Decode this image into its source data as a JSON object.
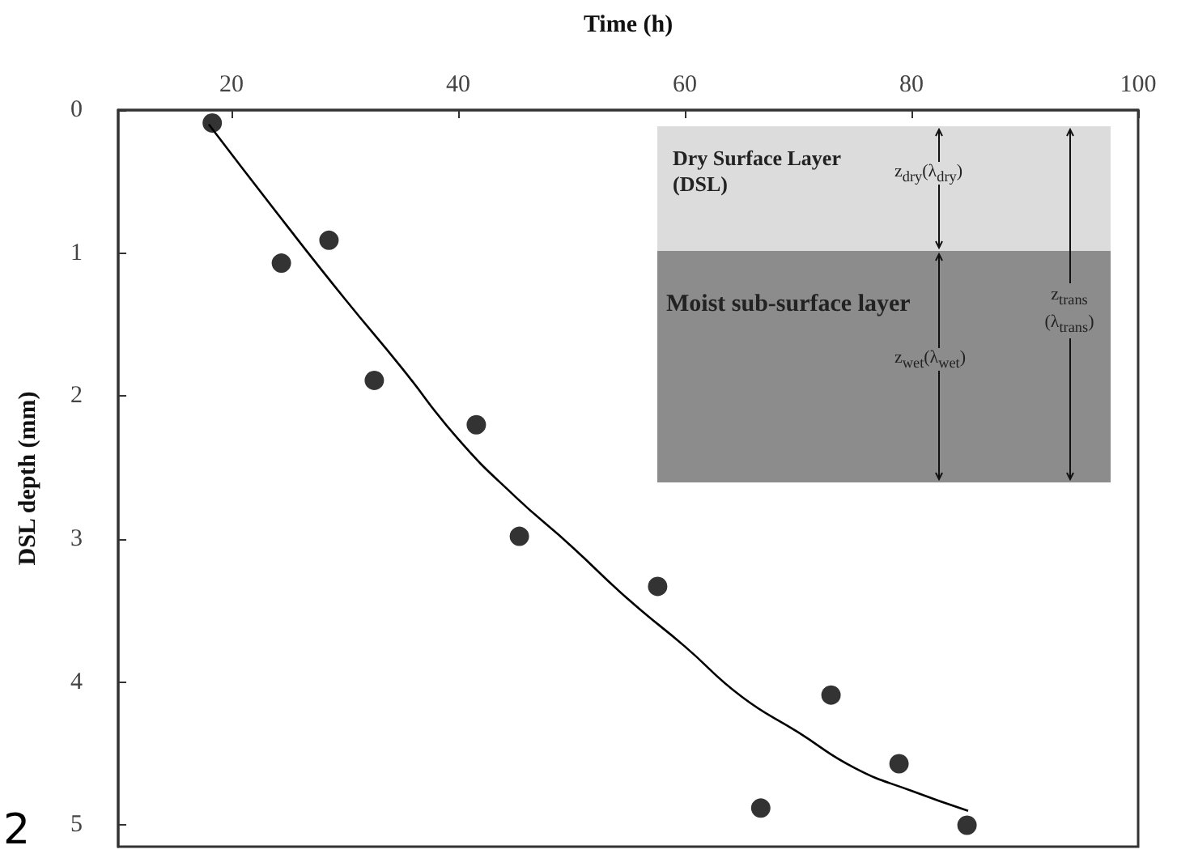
{
  "chart_data": {
    "type": "scatter",
    "xlabel": "Time (h)",
    "ylabel": "DSL depth (mm)",
    "xlim": [
      10,
      100
    ],
    "xticks": [
      20,
      40,
      60,
      80,
      100
    ],
    "ylim": [
      5.15,
      0
    ],
    "yticks": [
      0,
      1,
      2,
      3,
      4,
      5
    ],
    "grid": false,
    "marker": "circle",
    "series": [
      {
        "color": "#000000",
        "x": [
          18.3,
          24.4,
          28.6,
          32.6,
          41.6,
          45.4,
          57.6,
          66.7,
          72.9,
          78.9,
          84.9
        ],
        "values": [
          0.09,
          1.07,
          0.91,
          1.89,
          2.2,
          2.98,
          3.33,
          4.88,
          4.09,
          4.57,
          5.0
        ]
      },
      {
        "type": "line",
        "color": "#000000",
        "marker": "none",
        "line_style": "solid",
        "x": [
          18,
          25,
          30,
          35,
          40,
          45,
          50,
          55,
          60,
          65,
          70,
          75,
          80,
          85
        ],
        "values": [
          0.1,
          0.82,
          1.32,
          1.8,
          2.3,
          2.7,
          3.05,
          3.42,
          3.75,
          4.1,
          4.35,
          4.6,
          4.76,
          4.9
        ]
      }
    ],
    "annotations": [
      "Dry Surface Layer (DSL)",
      "Moist sub-surface layer",
      "z$_{dry}$(λ$_{dry}$)",
      "z$_{wet}$(λ$_{wet}$)",
      "z$_{trans}$ (λ$_{trans}$)",
      "2"
    ]
  }
}
